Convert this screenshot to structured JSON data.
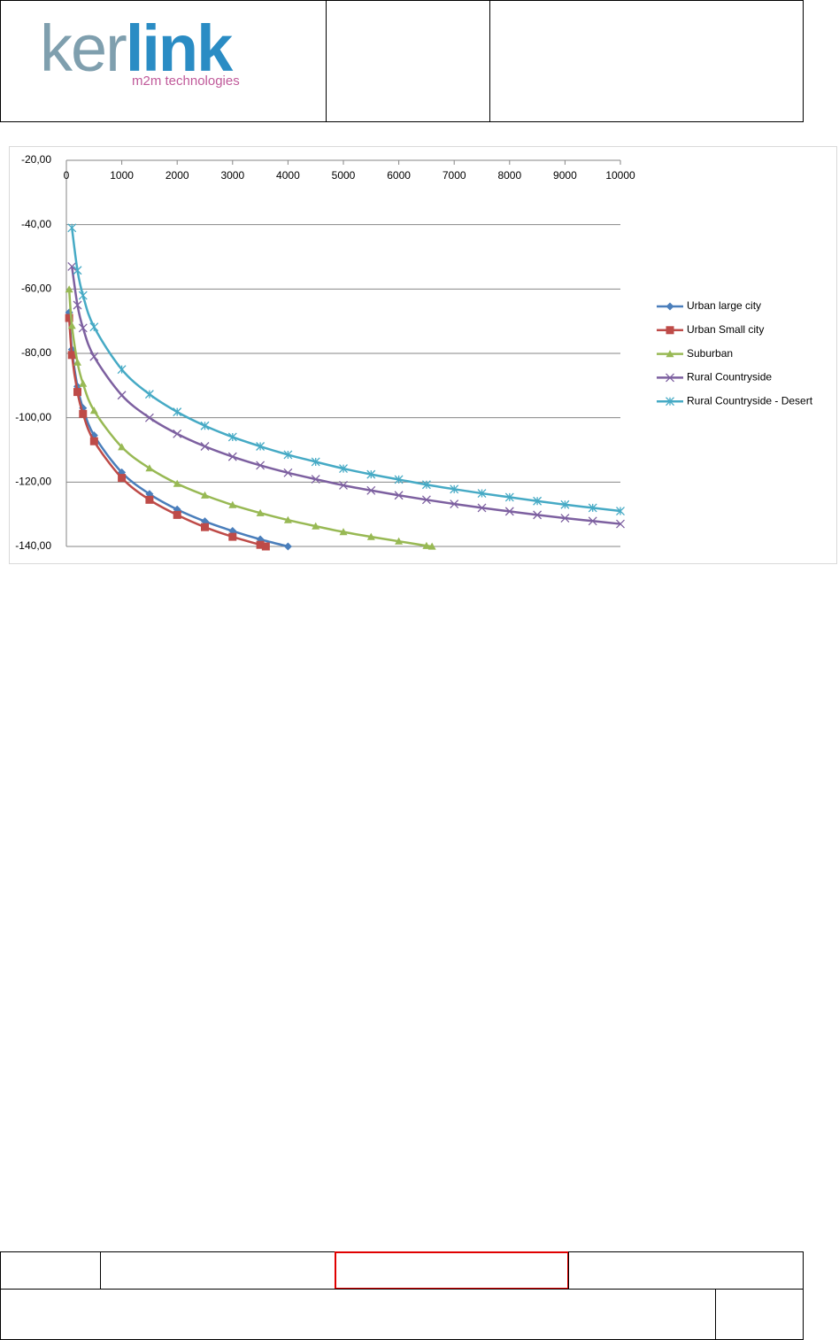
{
  "header": {
    "logo": {
      "name_1": "ker",
      "name_2": "link",
      "tagline": "m2m technologies"
    }
  },
  "chart_data": {
    "type": "line",
    "xlim": [
      0,
      10000
    ],
    "xticks": [
      0,
      1000,
      2000,
      3000,
      4000,
      5000,
      6000,
      7000,
      8000,
      9000,
      10000
    ],
    "ylim": [
      -140,
      -20
    ],
    "yticks": [
      {
        "value": -20,
        "label": "-20,00"
      },
      {
        "value": -40,
        "label": "-40,00"
      },
      {
        "value": -60,
        "label": "-60,00"
      },
      {
        "value": -80,
        "label": "-80,00"
      },
      {
        "value": -100,
        "label": "-100,00"
      },
      {
        "value": -120,
        "label": "-120,00"
      },
      {
        "value": -140,
        "label": "-140,00"
      }
    ],
    "grid": true,
    "legend": "right",
    "series": [
      {
        "name": "Urban large city",
        "color": "#4a7ebb",
        "marker": "diamond",
        "x": [
          50,
          100,
          200,
          300,
          500,
          1000,
          1500,
          2000,
          2500,
          3000,
          3500,
          4000
        ],
        "values": [
          -67.3,
          -78.8,
          -90.3,
          -97.0,
          -105.5,
          -117.0,
          -123.7,
          -128.5,
          -132.2,
          -135.2,
          -137.8,
          -140.0
        ]
      },
      {
        "name": "Urban Small city",
        "color": "#be4b48",
        "marker": "square",
        "x": [
          50,
          100,
          200,
          300,
          500,
          1000,
          1500,
          2000,
          2500,
          3000,
          3500,
          3600
        ],
        "values": [
          -69.0,
          -80.5,
          -92.0,
          -98.8,
          -107.3,
          -118.7,
          -125.5,
          -130.2,
          -134.0,
          -137.0,
          -139.5,
          -140.0
        ]
      },
      {
        "name": "Suburban",
        "color": "#98b954",
        "marker": "triangle",
        "x": [
          50,
          100,
          200,
          300,
          500,
          1000,
          1500,
          2000,
          2500,
          3000,
          3500,
          4000,
          4500,
          5000,
          5500,
          6000,
          6500,
          6600
        ],
        "values": [
          -60.1,
          -71.4,
          -82.8,
          -89.4,
          -97.8,
          -109.1,
          -115.7,
          -120.5,
          -124.1,
          -127.1,
          -129.6,
          -131.8,
          -133.7,
          -135.5,
          -137.0,
          -138.4,
          -139.8,
          -140.0
        ]
      },
      {
        "name": "Rural Countryside",
        "color": "#7d60a0",
        "marker": "x",
        "x": [
          100,
          200,
          300,
          500,
          1000,
          1500,
          2000,
          2500,
          3000,
          3500,
          4000,
          4500,
          5000,
          5500,
          6000,
          6500,
          7000,
          7500,
          8000,
          8500,
          9000,
          9500,
          10000
        ],
        "values": [
          -53.0,
          -65.0,
          -72.1,
          -81.0,
          -93.0,
          -100.0,
          -105.0,
          -108.9,
          -112.1,
          -114.8,
          -117.1,
          -119.1,
          -121.0,
          -122.6,
          -124.1,
          -125.5,
          -126.8,
          -128.0,
          -129.1,
          -130.2,
          -131.2,
          -132.1,
          -133.0
        ]
      },
      {
        "name": "Rural Countryside - Desert",
        "color": "#46aac5",
        "marker": "star",
        "x": [
          100,
          200,
          300,
          500,
          1000,
          1500,
          2000,
          2500,
          3000,
          3500,
          4000,
          4500,
          5000,
          5500,
          6000,
          6500,
          7000,
          7500,
          8000,
          8500,
          9000,
          9500,
          10000
        ],
        "values": [
          -41.0,
          -54.2,
          -62.0,
          -71.8,
          -85.0,
          -92.7,
          -98.2,
          -102.5,
          -106.0,
          -108.9,
          -111.5,
          -113.7,
          -115.8,
          -117.6,
          -119.2,
          -120.8,
          -122.2,
          -123.5,
          -124.7,
          -125.9,
          -127.0,
          -128.0,
          -129.0
        ]
      }
    ]
  }
}
